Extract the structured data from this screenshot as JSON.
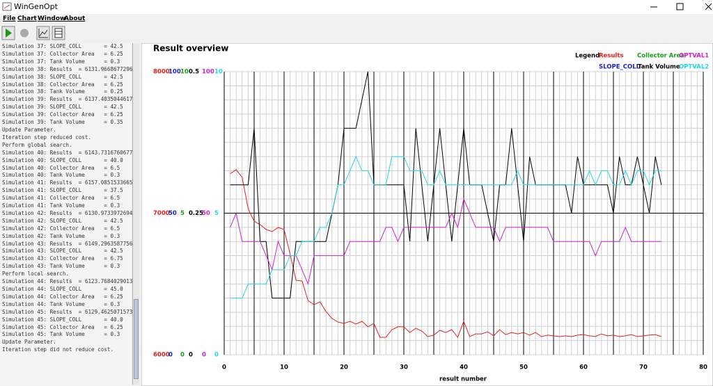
{
  "window": {
    "title": "WinGenOpt"
  },
  "menu": [
    "File",
    "Chart",
    "Window",
    "About"
  ],
  "log": [
    "Simulation 37: SLOPE_COLL       = 42.5",
    "Simulation 37: Collector Area   = 6.25",
    "Simulation 37: Tank Volume      = 0.3",
    "Simulation 38: Results  = 6131.966867729656",
    "Simulation 38: SLOPE_COLL       = 42.5",
    "Simulation 38: Collector Area   = 6.25",
    "Simulation 38: Tank Volume      = 0.25",
    "Simulation 39: Results  = 6137.403504461714",
    "Simulation 39: SLOPE_COLL       = 42.5",
    "Simulation 39: Collector Area   = 6.25",
    "Simulation 39: Tank Volume      = 0.35",
    "Update Parameter.",
    "Iteration step reduced cost.",
    "Perform global search.",
    "Simulation 40: Results  = 6143.731676067718",
    "Simulation 40: SLOPE_COLL       = 40.0",
    "Simulation 40: Collector Area   = 6.5",
    "Simulation 40: Tank Volume      = 0.3",
    "Simulation 41: Results  = 6157.085153366508",
    "Simulation 41: SLOPE_COLL       = 37.5",
    "Simulation 41: Collector Area   = 6.5",
    "Simulation 41: Tank Volume      = 0.3",
    "Simulation 42: Results  = 6130.973397269483",
    "Simulation 42: SLOPE_COLL       = 42.5",
    "Simulation 42: Collector Area   = 6.5",
    "Simulation 42: Tank Volume      = 0.3",
    "Simulation 43: Results  = 6149.296358775602",
    "Simulation 43: SLOPE_COLL       = 42.5",
    "Simulation 43: Collector Area   = 6.75",
    "Simulation 43: Tank Volume      = 0.3",
    "Perform local search.",
    "Simulation 44: Results  = 6123.768402901374",
    "Simulation 44: SLOPE_COLL       = 45.0",
    "Simulation 44: Collector Area   = 6.25",
    "Simulation 44: Tank Volume      = 0.3",
    "Simulation 45: Results  = 6129.462507157398",
    "Simulation 45: SLOPE_COLL       = 40.0",
    "Simulation 45: Collector Area   = 6.25",
    "Simulation 45: Tank Volume      = 0.3",
    "Update Parameter.",
    "Iteration step did not reduce cost."
  ],
  "chart_data": {
    "type": "line",
    "title": "Result overview",
    "legend_title": "Legend",
    "xlabel": "result number",
    "xlim": [
      0,
      80
    ],
    "xticks": [
      0,
      10,
      20,
      30,
      40,
      50,
      60,
      70,
      80
    ],
    "x": [
      1,
      2,
      3,
      4,
      5,
      6,
      7,
      8,
      9,
      10,
      11,
      12,
      13,
      14,
      15,
      16,
      17,
      18,
      19,
      20,
      21,
      22,
      23,
      24,
      25,
      26,
      27,
      28,
      29,
      30,
      31,
      32,
      33,
      34,
      35,
      36,
      37,
      38,
      39,
      40,
      41,
      42,
      43,
      44,
      45,
      46,
      47,
      48,
      49,
      50,
      51,
      52,
      53,
      54,
      55,
      56,
      57,
      58,
      59,
      60,
      61,
      62,
      63,
      64,
      65,
      66,
      67,
      68,
      69,
      70,
      71,
      72,
      73
    ],
    "series": [
      {
        "name": "Results",
        "color": "#e02020",
        "ylim": [
          6000,
          8000
        ],
        "yticks": [
          6000,
          7000,
          8000
        ],
        "values": [
          7278,
          7307,
          7253,
          7032,
          6943,
          6919,
          6885,
          6870,
          6899,
          6885,
          6712,
          6526,
          6521,
          6383,
          6354,
          6373,
          6305,
          6256,
          6231,
          6221,
          6236,
          6216,
          6236,
          6197,
          6221,
          6123,
          6123,
          6177,
          6197,
          6197,
          6157,
          6187,
          6167,
          6128,
          6138,
          6172,
          6157,
          6177,
          6123,
          6236,
          6128,
          6147,
          6147,
          6162,
          6133,
          6177,
          6142,
          6157,
          6147,
          6157,
          6138,
          6157,
          6128,
          6138,
          6133,
          6128,
          6133,
          6128,
          6138,
          6142,
          6133,
          6128,
          6147,
          6133,
          6138,
          6128,
          6133,
          6142,
          6128,
          6133,
          6138,
          6142,
          6128
        ]
      },
      {
        "name": "SLOPE_COLL",
        "color": "#1c1cc8",
        "ylim": [
          0,
          100
        ],
        "yticks": [
          0,
          50,
          100
        ]
      },
      {
        "name": "Collector Area",
        "color": "#14a014",
        "ylim": [
          0,
          10
        ],
        "yticks": [
          0,
          5,
          10
        ]
      },
      {
        "name": "Tank Volume",
        "color": "#000000",
        "ylim": [
          0,
          0.5
        ],
        "yticks": [
          0,
          0.25,
          0.5
        ],
        "values": [
          0.3,
          0.3,
          0.3,
          0.3,
          0.4,
          0.2,
          0.2,
          0.1,
          0.1,
          0.1,
          0.1,
          0.2,
          0.2,
          0.2,
          0.2,
          0.2,
          0.2,
          0.25,
          0.3,
          0.4,
          0.4,
          0.4,
          0.45,
          0.5,
          0.3,
          0.3,
          0.3,
          0.3,
          0.3,
          0.3,
          0.2,
          0.4,
          0.3,
          0.2,
          0.3,
          0.4,
          0.3,
          0.2,
          0.3,
          0.4,
          0.3,
          0.3,
          0.3,
          0.25,
          0.2,
          0.3,
          0.3,
          0.4,
          0.3,
          0.2,
          0.35,
          0.3,
          0.3,
          0.3,
          0.3,
          0.3,
          0.3,
          0.25,
          0.35,
          0.3,
          0.3,
          0.3,
          0.3,
          0.3,
          0.25,
          0.35,
          0.3,
          0.3,
          0.35,
          0.3,
          0.25,
          0.35,
          0.3
        ]
      },
      {
        "name": "OPTVAL1",
        "color": "#d020d0",
        "ylim": [
          0,
          100
        ],
        "yticks": [
          0,
          50,
          100
        ],
        "values": [
          45,
          50,
          40,
          40,
          40,
          40,
          35,
          30,
          40,
          35,
          35,
          35,
          30,
          25,
          35,
          35,
          35,
          35,
          35,
          35,
          40,
          40,
          40,
          40,
          40,
          40,
          45,
          45,
          40,
          45,
          45,
          45,
          45,
          45,
          45,
          45,
          45,
          50,
          45,
          55,
          50,
          45,
          45,
          45,
          45,
          40,
          45,
          45,
          45,
          45,
          45,
          45,
          45,
          45,
          40,
          40,
          40,
          40,
          40,
          40,
          40,
          35,
          40,
          40,
          40,
          40,
          45,
          40,
          40,
          40,
          40,
          40,
          40
        ]
      },
      {
        "name": "OPTVAL2",
        "color": "#20d8e8",
        "ylim": [
          0,
          10
        ],
        "yticks": [
          0,
          5,
          10
        ],
        "values": [
          2,
          2,
          2,
          2.5,
          2.5,
          2.5,
          2.5,
          3,
          3,
          3,
          3.5,
          3.5,
          4,
          4,
          4,
          4.5,
          4.5,
          5,
          6,
          6,
          6.5,
          7,
          6.5,
          6.5,
          6,
          6,
          6,
          7,
          7,
          7,
          6.5,
          6.5,
          6.5,
          6,
          6,
          6.5,
          6,
          6,
          6,
          6,
          6,
          6,
          6,
          6,
          6,
          6,
          6,
          6,
          6.5,
          6,
          6,
          6,
          6,
          6,
          6,
          6,
          6,
          6,
          6,
          6,
          6.5,
          6,
          6.5,
          6.5,
          6,
          6,
          6.5,
          6,
          6.5,
          6.5,
          6,
          6.5,
          6.5
        ]
      }
    ]
  }
}
